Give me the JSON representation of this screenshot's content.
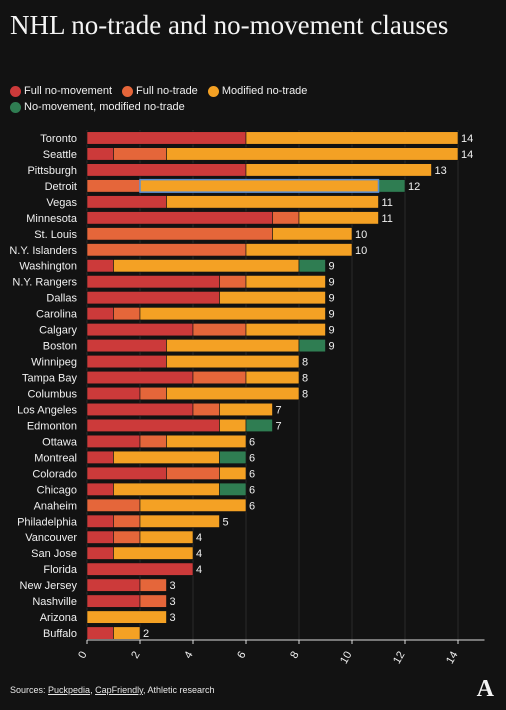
{
  "title": "NHL no-trade and no-movement clauses",
  "legend": [
    {
      "label": "Full no-movement",
      "color": "#cc3a3a"
    },
    {
      "label": "Full no-trade",
      "color": "#e5663a"
    },
    {
      "label": "Modified no-trade",
      "color": "#f4a124"
    },
    {
      "label": "No-movement, modified no-trade",
      "color": "#2f7d52"
    }
  ],
  "source": {
    "prefix": "Sources: ",
    "link1": "Puckpedia",
    "sep": ", ",
    "link2": "CapFriendly",
    "suffix": ", Athletic research"
  },
  "logo": "A",
  "chart_data": {
    "type": "bar",
    "orientation": "horizontal",
    "stacked": true,
    "xlim": [
      0,
      15
    ],
    "xticks": [
      0,
      2,
      4,
      6,
      8,
      10,
      12,
      14
    ],
    "categories": [
      "Toronto",
      "Seattle",
      "Pittsburgh",
      "Detroit",
      "Vegas",
      "Minnesota",
      "St. Louis",
      "N.Y. Islanders",
      "Washington",
      "N.Y. Rangers",
      "Dallas",
      "Carolina",
      "Calgary",
      "Boston",
      "Winnipeg",
      "Tampa Bay",
      "Columbus",
      "Los Angeles",
      "Edmonton",
      "Ottawa",
      "Montreal",
      "Colorado",
      "Chicago",
      "Anaheim",
      "Philadelphia",
      "Vancouver",
      "San Jose",
      "Florida",
      "New Jersey",
      "Nashville",
      "Arizona",
      "Buffalo"
    ],
    "series": [
      {
        "name": "Full no-movement",
        "color": "#cc3a3a",
        "values": [
          6,
          1,
          6,
          0,
          3,
          7,
          0,
          0,
          1,
          5,
          5,
          1,
          4,
          3,
          3,
          4,
          2,
          4,
          5,
          2,
          1,
          3,
          1,
          0,
          1,
          1,
          1,
          4,
          2,
          2,
          0,
          1
        ]
      },
      {
        "name": "Full no-trade",
        "color": "#e5663a",
        "values": [
          0,
          2,
          0,
          2,
          0,
          1,
          7,
          6,
          0,
          1,
          0,
          1,
          2,
          0,
          0,
          2,
          1,
          1,
          0,
          1,
          0,
          2,
          0,
          2,
          1,
          1,
          0,
          0,
          1,
          1,
          0,
          0
        ]
      },
      {
        "name": "Modified no-trade",
        "color": "#f4a124",
        "values": [
          8,
          11,
          7,
          9,
          8,
          3,
          3,
          4,
          7,
          3,
          4,
          7,
          3,
          5,
          5,
          2,
          5,
          2,
          1,
          3,
          4,
          1,
          4,
          4,
          3,
          2,
          3,
          0,
          0,
          0,
          3,
          1
        ]
      },
      {
        "name": "No-movement, modified no-trade",
        "color": "#2f7d52",
        "values": [
          0,
          0,
          0,
          1,
          0,
          0,
          0,
          0,
          1,
          0,
          0,
          0,
          0,
          1,
          0,
          0,
          0,
          0,
          1,
          0,
          1,
          0,
          1,
          0,
          0,
          0,
          0,
          0,
          0,
          0,
          0,
          0
        ]
      }
    ],
    "totals": [
      14,
      14,
      13,
      12,
      11,
      11,
      10,
      10,
      9,
      9,
      9,
      9,
      9,
      9,
      8,
      8,
      8,
      7,
      7,
      6,
      6,
      6,
      6,
      6,
      5,
      4,
      4,
      4,
      3,
      3,
      3,
      2
    ],
    "highlight": {
      "category": "Detroit",
      "from": 2,
      "to": 11,
      "color": "#5b8fd6"
    }
  }
}
